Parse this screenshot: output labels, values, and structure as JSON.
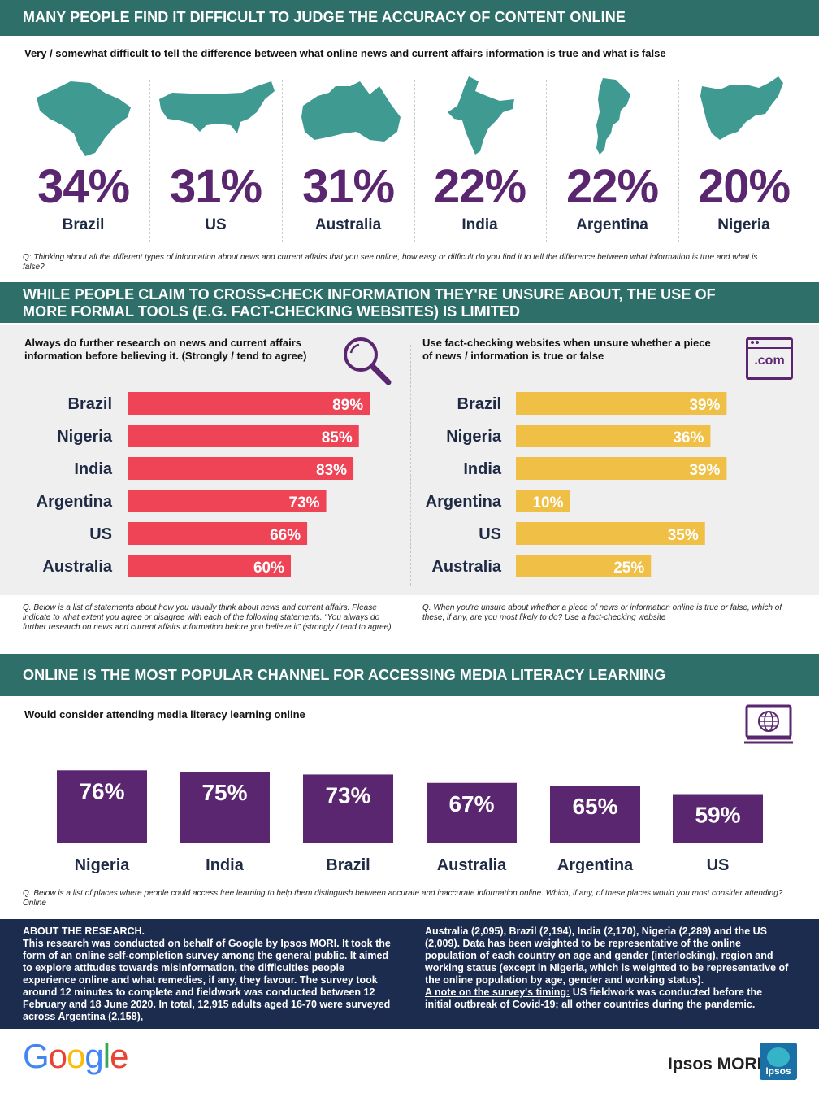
{
  "section1": {
    "title": "MANY PEOPLE FIND IT DIFFICULT TO JUDGE THE ACCURACY OF CONTENT ONLINE",
    "subtitle": "Very / somewhat difficult to tell the difference between what online news and current affairs information is true and what is false",
    "question": "Q: Thinking about all the different types of information about news and current affairs that you see online, how easy or difficult do you find it to tell the difference between what information is true and what is false?",
    "countries": [
      {
        "name": "Brazil",
        "pct": "34%",
        "icon": "brazil-map-icon"
      },
      {
        "name": "US",
        "pct": "31%",
        "icon": "us-map-icon"
      },
      {
        "name": "Australia",
        "pct": "31%",
        "icon": "australia-map-icon"
      },
      {
        "name": "India",
        "pct": "22%",
        "icon": "india-map-icon"
      },
      {
        "name": "Argentina",
        "pct": "22%",
        "icon": "argentina-map-icon"
      },
      {
        "name": "Nigeria",
        "pct": "20%",
        "icon": "nigeria-map-icon"
      }
    ]
  },
  "section2": {
    "title_line1": "WHILE PEOPLE CLAIM TO CROSS-CHECK INFORMATION THEY'RE UNSURE ABOUT, THE USE OF",
    "title_line2": "MORE FORMAL TOOLS (E.G. FACT-CHECKING WEBSITES) IS LIMITED",
    "left_sub": "Always do further research on news and current affairs information before believing it. (Strongly / tend to agree)",
    "right_sub": "Use fact-checking websites when unsure whether a piece of news / information is true or false",
    "dotcom": ".com",
    "left_question": "Q. Below is a list of statements about how you usually think about news and current affairs. Please indicate to what extent you agree or disagree with each of the following statements. “You always do further research on news and current affairs information before you believe it” (strongly / tend to agree)",
    "right_question": "Q. When you're unsure about whether a piece of news or information online is true or false, which of these, if any, are you most likely to do? Use a fact-checking website"
  },
  "section3": {
    "title": "ONLINE IS THE MOST POPULAR CHANNEL  FOR ACCESSING MEDIA LITERACY LEARNING",
    "subtitle": "Would consider attending media literacy learning online",
    "question": "Q.   Below is a list of places where people could access free learning to help them distinguish between accurate and inaccurate information online. Which, if any, of these places would you most consider attending? Online"
  },
  "about": {
    "heading": "ABOUT THE RESEARCH.",
    "col1": "This research was conducted on behalf of Google by Ipsos  MORI. It took the form of an online self-completion survey among the general public. It aimed to explore attitudes towards misinformation, the difficulties people experience online and what remedies, if any, they favour. The survey  took around 12 minutes to complete and fieldwork was conducted  between 12 February and 18 June 2020. In total, 12,915 adults aged 16-70 were surveyed across  Argentina (2,158),",
    "col2": "Australia (2,095),  Brazil (2,194),  India (2,170),  Nigeria (2,289) and the US (2,009).  Data has been weighted to be representative of the online population of each country  on age and gender (interlocking),  region and working status  (except in Nigeria, which is weighted to be representative of the online population by age, gender and working status).",
    "note_label": "A note on the survey's timing:",
    "note_text": " US fieldwork was conducted before the initial outbreak of Covid-19;  all other countries  during the pandemic."
  },
  "logos": {
    "google": "Google",
    "ipsos_mori": "Ipsos MORI",
    "ipsos_badge": "Ipsos"
  },
  "colors": {
    "teal": "#2e6f6a",
    "purple": "#5b2670",
    "red": "#ef4356",
    "yellow": "#f0bf45",
    "navy": "#1c2c4f",
    "map_teal": "#3f9a92"
  },
  "chart_data": [
    {
      "type": "bar",
      "orientation": "horizontal",
      "title": "Always do further research on news and current affairs information before believing it. (Strongly / tend to agree)",
      "categories": [
        "Brazil",
        "Nigeria",
        "India",
        "Argentina",
        "US",
        "Australia"
      ],
      "values": [
        89,
        85,
        83,
        73,
        66,
        60
      ],
      "labels": [
        "89%",
        "85%",
        "83%",
        "73%",
        "66%",
        "60%"
      ],
      "color": "#ef4356",
      "xlim": [
        0,
        100
      ],
      "grid": false
    },
    {
      "type": "bar",
      "orientation": "horizontal",
      "title": "Use fact-checking websites when unsure whether a piece of news / information is true or false",
      "categories": [
        "Brazil",
        "Nigeria",
        "India",
        "Argentina",
        "US",
        "Australia"
      ],
      "values": [
        39,
        36,
        39,
        10,
        35,
        25
      ],
      "labels": [
        "39%",
        "36%",
        "39%",
        "10%",
        "35%",
        "25%"
      ],
      "color": "#f0bf45",
      "xlim": [
        0,
        100
      ],
      "grid": false
    },
    {
      "type": "bar",
      "orientation": "vertical",
      "title": "Would consider attending media literacy learning online",
      "categories": [
        "Nigeria",
        "India",
        "Brazil",
        "Australia",
        "Argentina",
        "US"
      ],
      "values": [
        76,
        75,
        73,
        67,
        65,
        59
      ],
      "labels": [
        "76%",
        "75%",
        "73%",
        "67%",
        "65%",
        "59%"
      ],
      "color": "#5b2670",
      "ylim": [
        0,
        100
      ],
      "grid": false
    }
  ]
}
